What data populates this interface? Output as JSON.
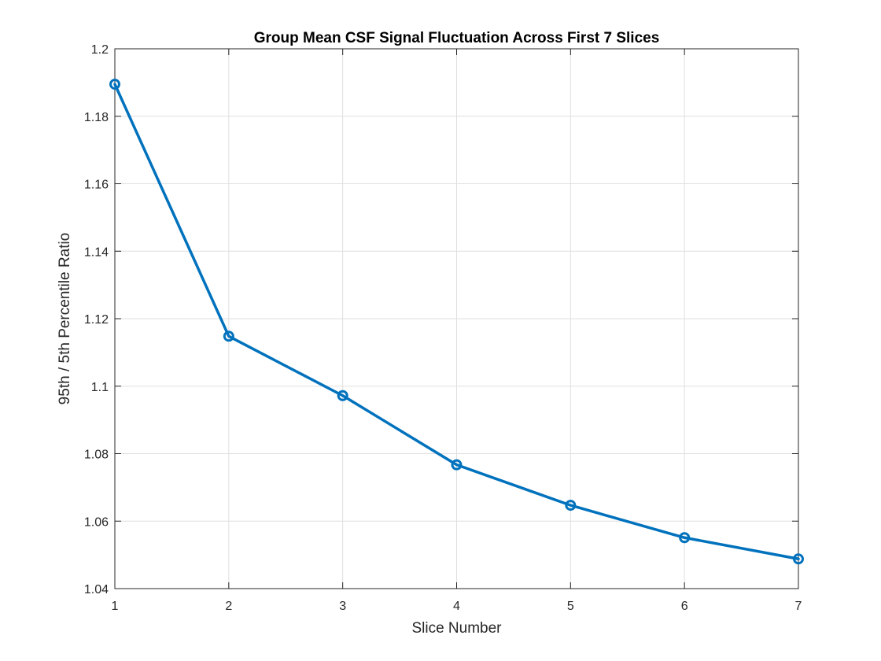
{
  "chart_data": {
    "type": "line",
    "title": "Group Mean CSF Signal Fluctuation Across First 7 Slices",
    "xlabel": "Slice Number",
    "ylabel": "95th / 5th Percentile Ratio",
    "x": [
      1,
      2,
      3,
      4,
      5,
      6,
      7
    ],
    "series": [
      {
        "values": [
          1.1895,
          1.1148,
          1.0972,
          1.0767,
          1.0647,
          1.0551,
          1.0488
        ],
        "color": "#0072BD",
        "marker": "circle"
      }
    ],
    "xlim": [
      1,
      7
    ],
    "ylim": [
      1.04,
      1.2
    ],
    "xticks": [
      1,
      2,
      3,
      4,
      5,
      6,
      7
    ],
    "xtick_labels": [
      "1",
      "2",
      "3",
      "4",
      "5",
      "6",
      "7"
    ],
    "yticks": [
      1.04,
      1.06,
      1.08,
      1.1,
      1.12,
      1.14,
      1.16,
      1.18,
      1.2
    ],
    "ytick_labels": [
      "1.04",
      "1.06",
      "1.08",
      "1.1",
      "1.12",
      "1.14",
      "1.16",
      "1.18",
      "1.2"
    ],
    "grid": true,
    "legend": "none"
  }
}
